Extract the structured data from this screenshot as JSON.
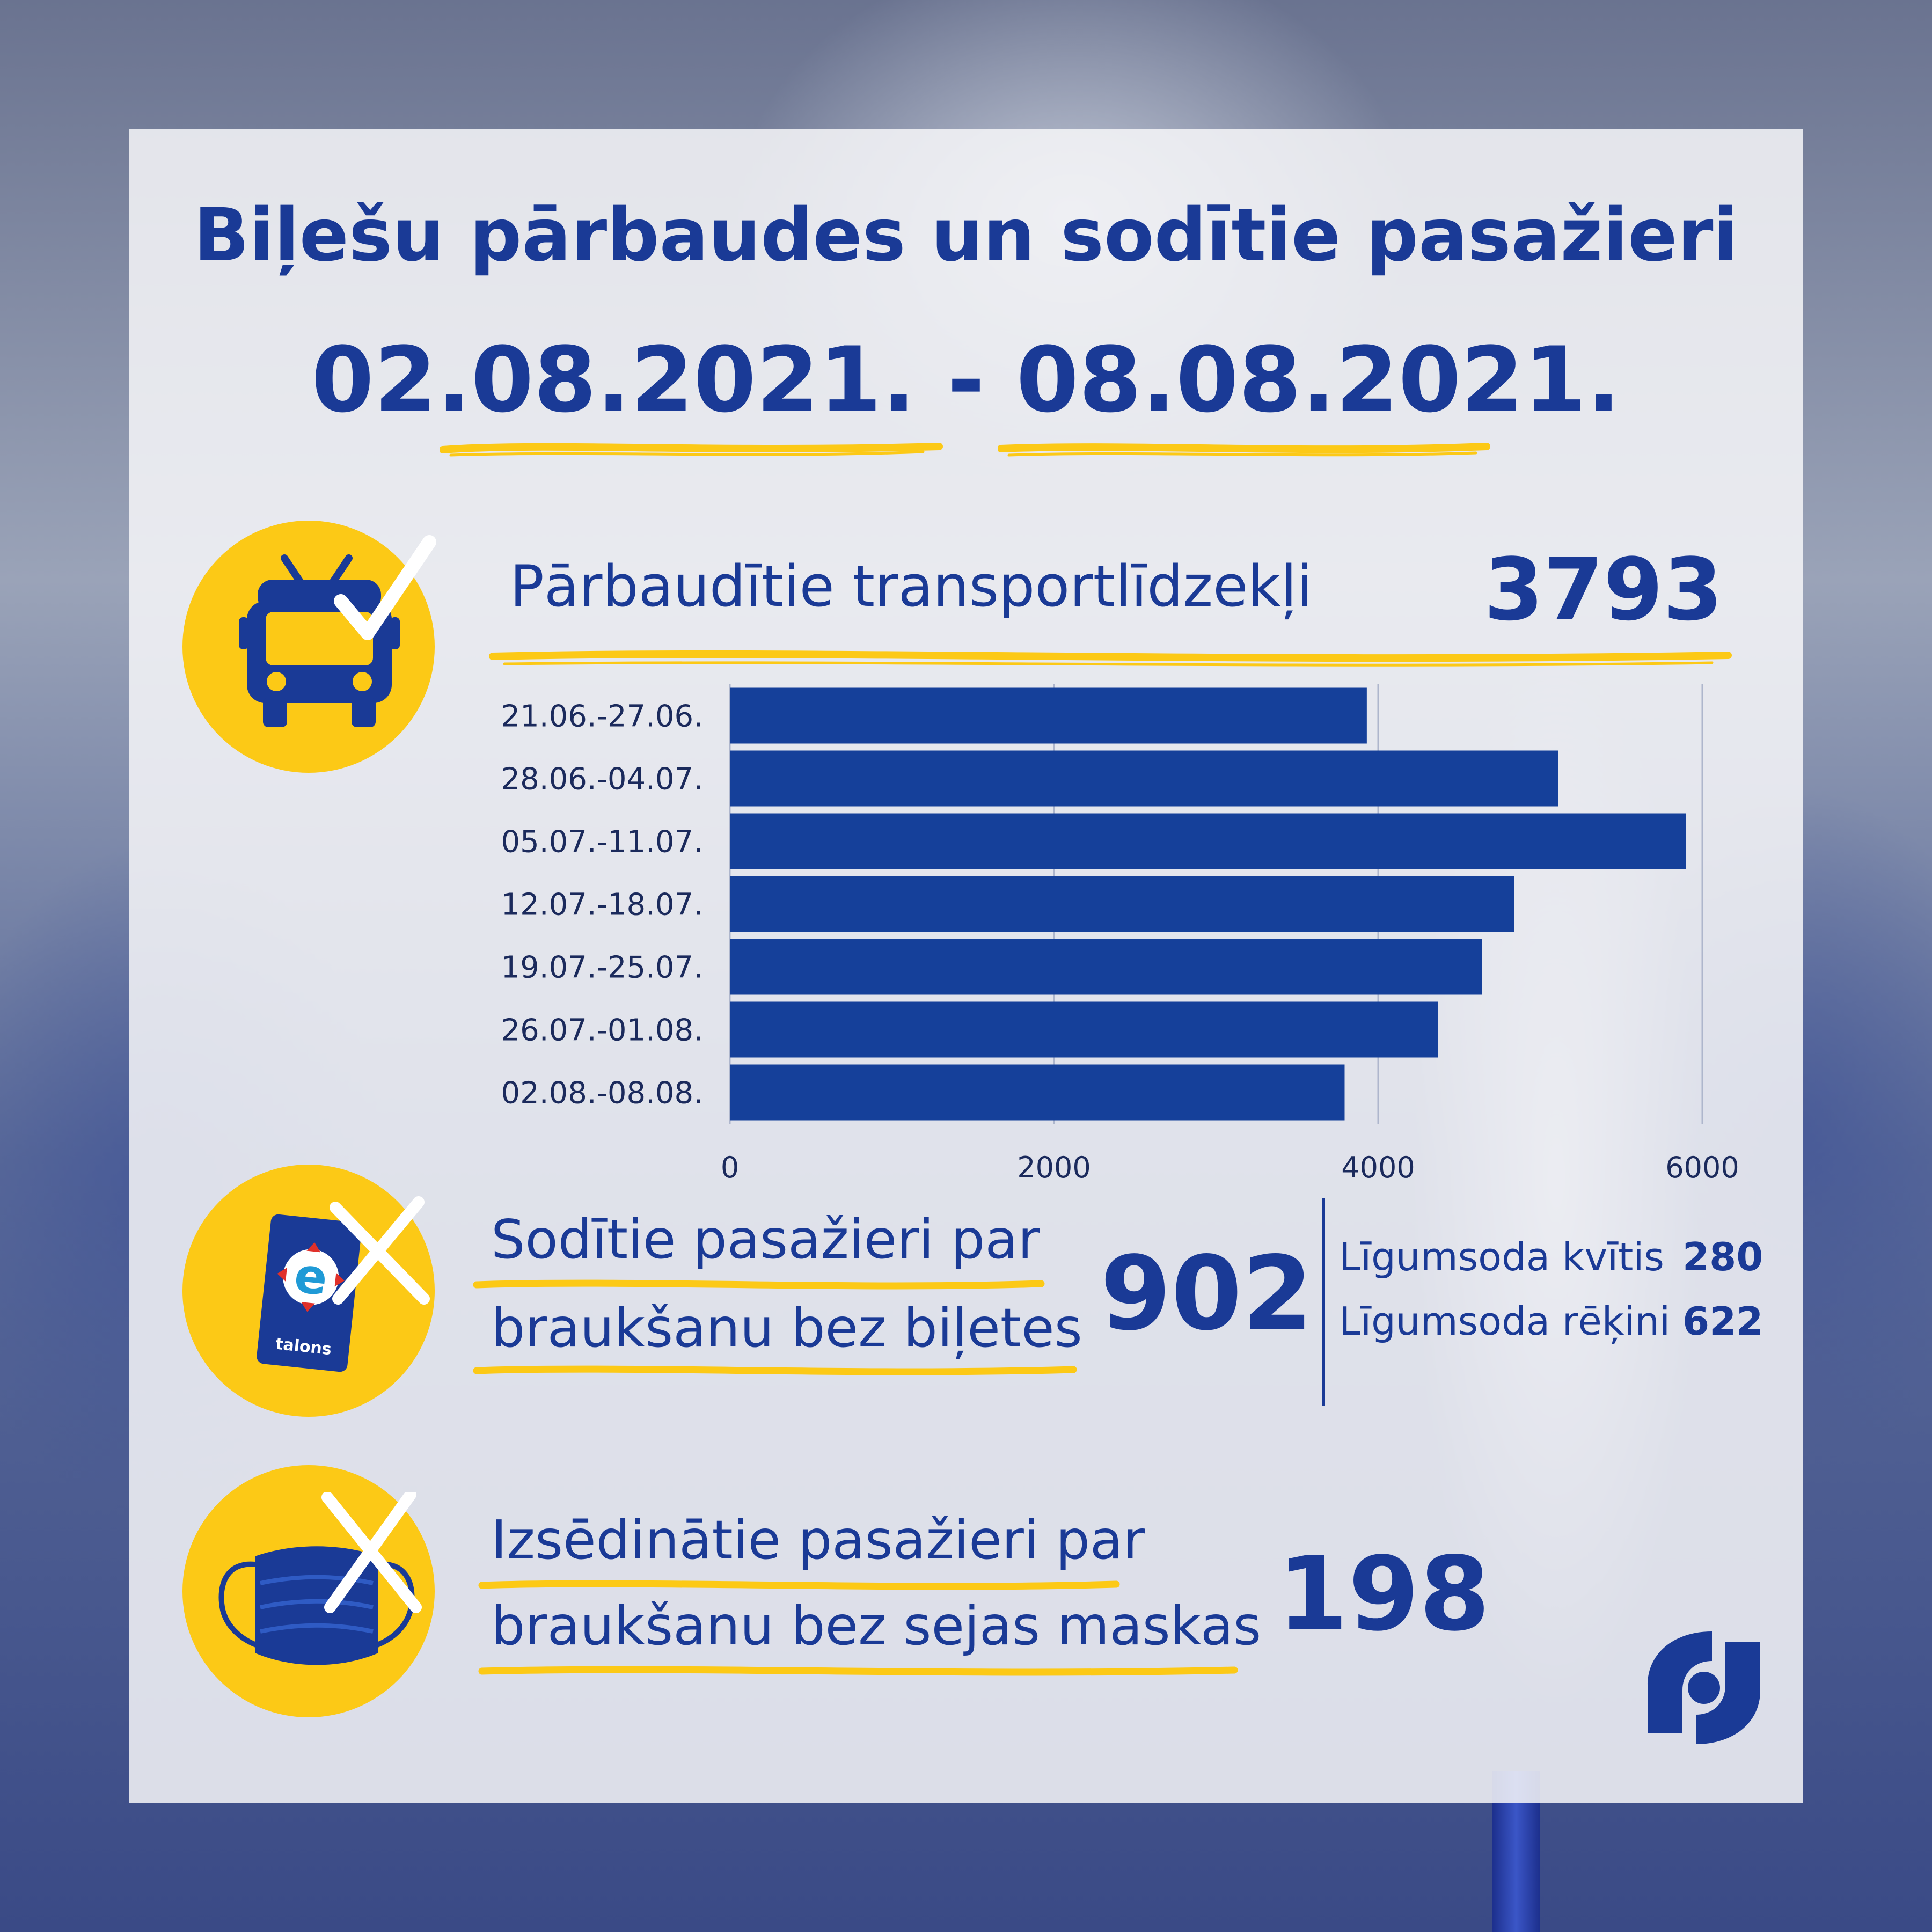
{
  "header": {
    "title": "Biļešu pārbaudes un sodītie pasažieri",
    "date_range": "02.08.2021. - 08.08.2021."
  },
  "vehicles": {
    "label": "Pārbaudītie transportlīdzekļi",
    "value": "3793",
    "icon": "bus-check-icon"
  },
  "chart_data": {
    "type": "bar",
    "orientation": "horizontal",
    "categories": [
      "21.06.-27.06.",
      "28.06.-04.07.",
      "05.07.-11.07.",
      "12.07.-18.07.",
      "19.07.-25.07.",
      "26.07.-01.08.",
      "02.08.-08.08."
    ],
    "values": [
      3930,
      5110,
      5900,
      4840,
      4640,
      4370,
      3793
    ],
    "xlim": [
      0,
      6000
    ],
    "xticks": [
      "0",
      "2000",
      "4000",
      "6000"
    ],
    "grid": true,
    "bar_color": "#15409a"
  },
  "fined": {
    "label_line1": "Sodītie pasažieri par",
    "label_line2": "braukšanu bez biļetes",
    "value": "902",
    "icon": "etalons-card-x-icon",
    "card_text": "talons",
    "breakdown": [
      {
        "label": "Līgumsoda kvītis",
        "value": "280"
      },
      {
        "label": "Līgumsoda rēķini",
        "value": "622"
      }
    ]
  },
  "masks": {
    "label_line1": "Izsēdinātie pasažieri par",
    "label_line2": "braukšanu bez sejas maskas",
    "value": "198",
    "icon": "face-mask-x-icon"
  },
  "colors": {
    "primary": "#1a3a96",
    "accent": "#fcc916"
  }
}
